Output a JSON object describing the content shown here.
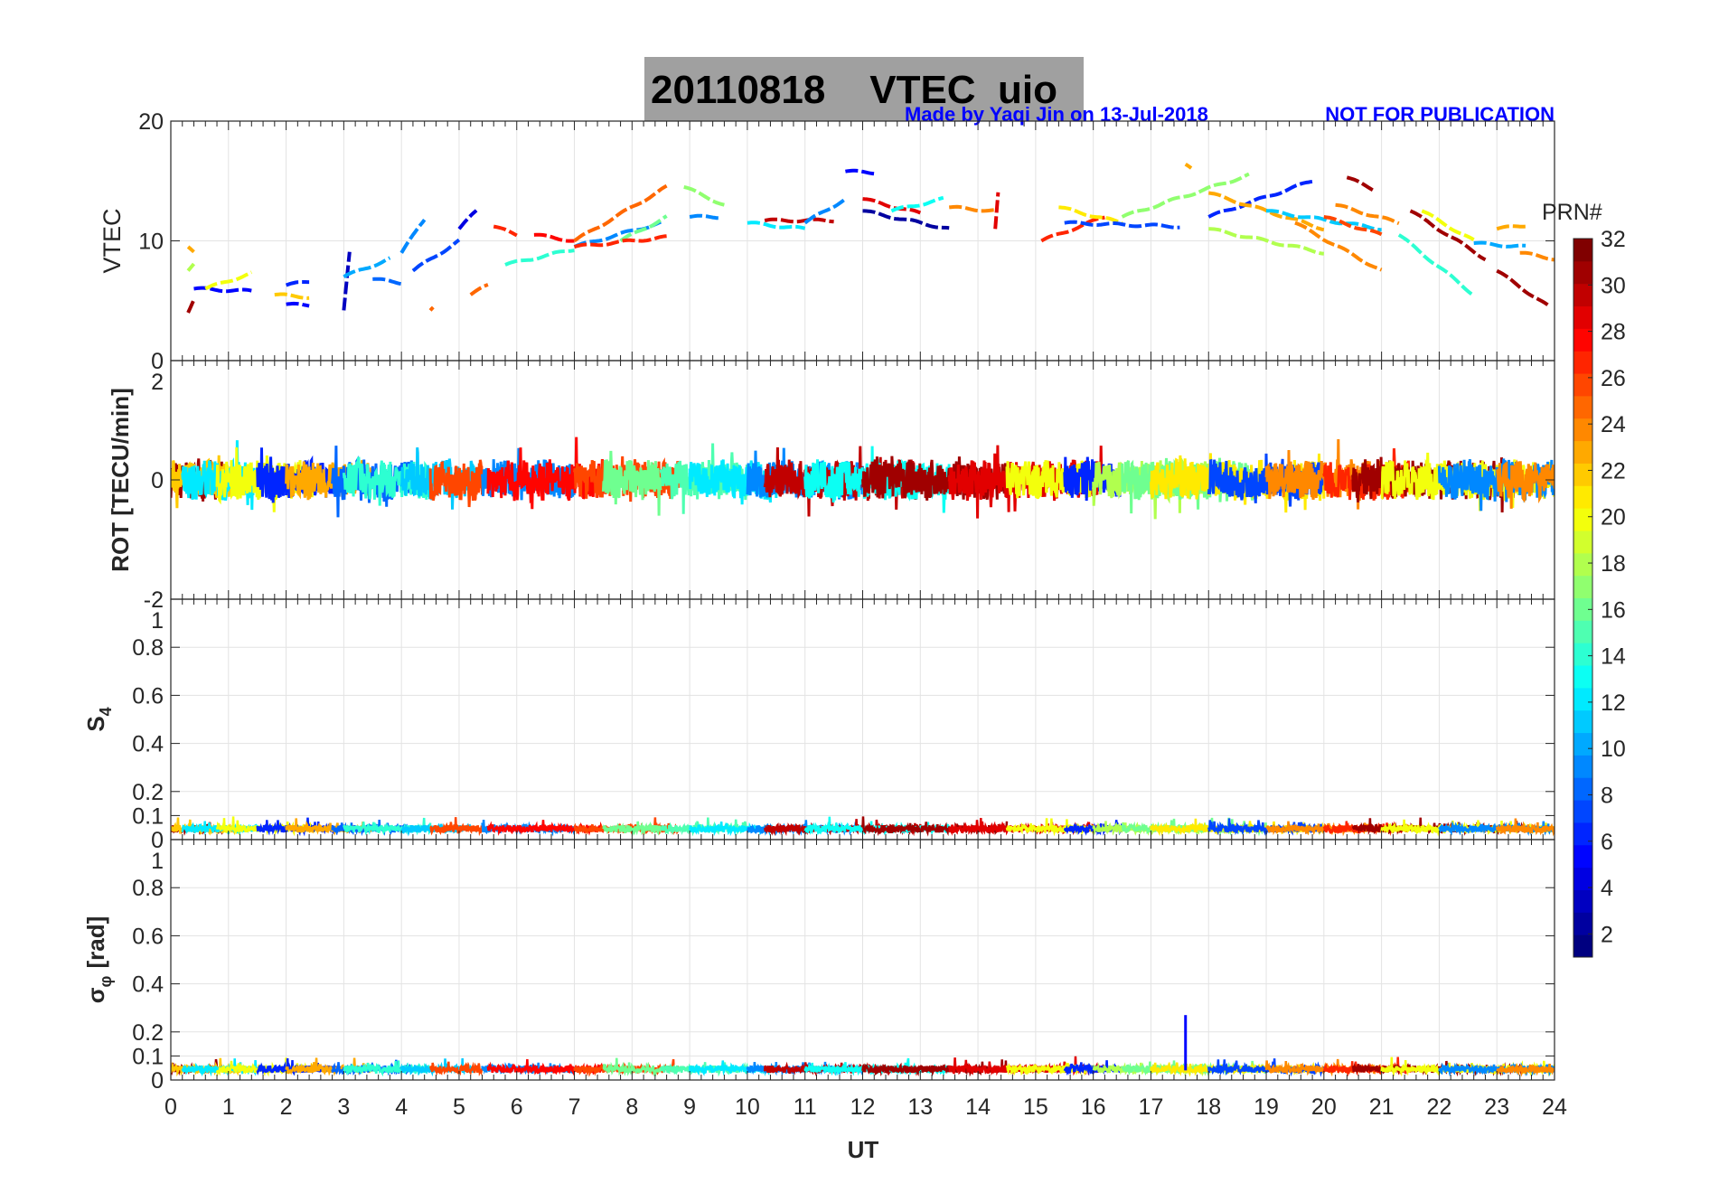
{
  "chart_data": {
    "type": "line",
    "title": "20110818    VTEC  uio",
    "credit": "Made by Yaqi Jin on 13-Jul-2018",
    "notice": "NOT FOR PUBLICATION",
    "xlabel": "UT",
    "xlim": [
      0,
      24
    ],
    "xticks": [
      "0",
      "1",
      "2",
      "3",
      "4",
      "5",
      "6",
      "7",
      "8",
      "9",
      "10",
      "11",
      "12",
      "13",
      "14",
      "15",
      "16",
      "17",
      "18",
      "19",
      "20",
      "21",
      "22",
      "23",
      "24"
    ],
    "colorbar": {
      "label": "PRN#",
      "range": [
        1,
        32
      ],
      "ticks": [
        "2",
        "4",
        "6",
        "8",
        "10",
        "12",
        "14",
        "16",
        "18",
        "20",
        "22",
        "24",
        "26",
        "28",
        "30",
        "32"
      ],
      "colormap": "jet"
    },
    "panels": [
      {
        "id": "vtec",
        "ylabel": "VTEC",
        "ylim": [
          0,
          20
        ],
        "yticks": [
          "0",
          "10",
          "20"
        ],
        "yvals": [
          0,
          10,
          20
        ]
      },
      {
        "id": "rot",
        "ylabel": "ROT [TECU/min]",
        "ylim": [
          -2,
          2
        ],
        "yticks": [
          "-2",
          "0",
          "2"
        ],
        "yvals": [
          -2,
          0,
          2
        ]
      },
      {
        "id": "s4",
        "ylabel": "S",
        "ylabel_sub": "4",
        "ylim": [
          0,
          1
        ],
        "yticks": [
          "0",
          "0.1",
          "0.2",
          "0.4",
          "0.6",
          "0.8",
          "1"
        ],
        "yvals": [
          0,
          0.1,
          0.2,
          0.4,
          0.6,
          0.8,
          1
        ]
      },
      {
        "id": "sigma",
        "ylabel": "σ",
        "ylabel_sub": "φ",
        "ylabel_unit": "[rad]",
        "ylim": [
          0,
          1
        ],
        "yticks": [
          "0",
          "0.1",
          "0.2",
          "0.4",
          "0.6",
          "0.8",
          "1"
        ],
        "yvals": [
          0,
          0.1,
          0.2,
          0.4,
          0.6,
          0.8,
          1
        ]
      }
    ],
    "vtec_segments": [
      [
        0.3,
        0.4,
        23,
        9.5,
        9
      ],
      [
        0.3,
        0.4,
        18,
        7.5,
        8
      ],
      [
        0.3,
        0.4,
        31,
        4,
        5
      ],
      [
        0.4,
        1.4,
        5,
        6,
        5.8
      ],
      [
        0.6,
        1.4,
        20,
        6,
        7.3
      ],
      [
        1.8,
        2.4,
        22,
        5.5,
        5.3
      ],
      [
        2,
        2.4,
        5,
        4.7,
        4.6
      ],
      [
        2,
        2.4,
        6,
        6.3,
        6.6
      ],
      [
        3,
        3.1,
        3,
        4.2,
        9
      ],
      [
        3,
        3.8,
        10,
        7,
        8.5
      ],
      [
        3.5,
        4,
        8,
        6.8,
        6.5
      ],
      [
        4,
        4.4,
        9,
        9,
        11.8
      ],
      [
        4.2,
        5,
        7,
        7.5,
        10
      ],
      [
        5,
        5.3,
        4,
        11,
        12.5
      ],
      [
        4.5,
        4.55,
        25,
        4.2,
        4.4
      ],
      [
        5.2,
        5.5,
        25,
        5.5,
        6.3
      ],
      [
        5.6,
        6,
        27,
        11.2,
        10.5
      ],
      [
        5.8,
        7,
        14,
        8,
        9.3
      ],
      [
        6.3,
        7,
        28,
        10.5,
        10
      ],
      [
        7,
        8.6,
        25,
        10,
        14.5
      ],
      [
        7,
        8.5,
        9,
        9.5,
        11.5
      ],
      [
        7.8,
        8.6,
        16,
        10,
        12
      ],
      [
        7,
        8.6,
        27,
        9.5,
        10.3
      ],
      [
        8.9,
        9.6,
        17,
        14.5,
        13
      ],
      [
        9,
        9.5,
        9,
        12,
        12
      ],
      [
        10,
        11,
        12,
        11.5,
        11
      ],
      [
        10.3,
        11.5,
        30,
        11.7,
        11.7
      ],
      [
        11,
        11.7,
        9,
        11.5,
        13.5
      ],
      [
        11.7,
        12.2,
        5,
        15.8,
        15.7
      ],
      [
        12,
        13.5,
        2,
        12.5,
        11
      ],
      [
        12,
        13,
        29,
        13.5,
        12.3
      ],
      [
        12.5,
        13.4,
        13,
        12.5,
        13.5
      ],
      [
        13.5,
        14.3,
        24,
        12.8,
        12.5
      ],
      [
        14.3,
        14.35,
        29,
        11,
        14
      ],
      [
        15.1,
        16.2,
        27,
        10,
        12
      ],
      [
        15.4,
        16.5,
        21,
        12.8,
        11.5
      ],
      [
        15.5,
        17.5,
        7,
        11.5,
        11.2
      ],
      [
        16.5,
        18.7,
        17,
        12,
        15.5
      ],
      [
        17.6,
        17.7,
        23,
        16.4,
        16
      ],
      [
        18,
        19.8,
        6,
        12,
        15
      ],
      [
        18,
        20,
        23,
        14,
        11
      ],
      [
        18,
        20,
        18,
        11,
        9
      ],
      [
        19,
        21,
        11,
        12.5,
        11
      ],
      [
        20.4,
        20.9,
        31,
        15.3,
        14.2
      ],
      [
        20.2,
        21.3,
        24,
        13,
        11.5
      ],
      [
        19.5,
        21,
        24,
        11.5,
        7.5
      ],
      [
        20,
        21,
        26,
        12,
        10.5
      ],
      [
        21.3,
        22.6,
        14,
        10.5,
        5.5
      ],
      [
        21.5,
        22.8,
        31,
        12.5,
        8.5
      ],
      [
        21.7,
        22.6,
        20,
        12.5,
        10
      ],
      [
        22.6,
        23.5,
        10,
        9.8,
        9.5
      ],
      [
        23,
        23.5,
        23,
        11,
        11.3
      ],
      [
        23,
        23.9,
        31,
        7.5,
        4.5
      ],
      [
        23.4,
        24,
        24,
        9,
        8.5
      ]
    ],
    "arcs": [
      [
        0,
        0.9,
        31
      ],
      [
        0,
        1.2,
        22
      ],
      [
        0.2,
        1.5,
        12
      ],
      [
        0.8,
        2.5,
        20
      ],
      [
        1.5,
        3,
        6
      ],
      [
        2,
        3.5,
        23
      ],
      [
        2.8,
        4.2,
        8
      ],
      [
        3,
        4.5,
        14
      ],
      [
        4,
        5.3,
        11
      ],
      [
        4.5,
        5.4,
        26
      ],
      [
        5.4,
        7,
        9
      ],
      [
        5.5,
        7.5,
        28
      ],
      [
        7,
        8.8,
        26
      ],
      [
        7.5,
        8.5,
        16
      ],
      [
        8.5,
        10,
        15
      ],
      [
        9,
        10.5,
        12
      ],
      [
        10,
        12,
        9
      ],
      [
        10.3,
        13,
        30
      ],
      [
        11,
        13.5,
        13
      ],
      [
        12,
        14.5,
        31
      ],
      [
        13.5,
        16.2,
        29
      ],
      [
        14.5,
        16,
        20
      ],
      [
        15.5,
        16.5,
        6
      ],
      [
        16,
        18,
        18
      ],
      [
        16.5,
        19,
        16
      ],
      [
        17,
        20,
        21
      ],
      [
        18,
        20,
        7
      ],
      [
        19,
        21,
        24
      ],
      [
        20,
        21.5,
        27
      ],
      [
        20.5,
        23.5,
        31
      ],
      [
        21,
        24,
        20
      ],
      [
        22,
        24,
        9
      ],
      [
        23,
        24,
        24
      ]
    ],
    "sigma_spike": {
      "ut": 17.6,
      "value": 0.27,
      "prn": 5
    }
  }
}
